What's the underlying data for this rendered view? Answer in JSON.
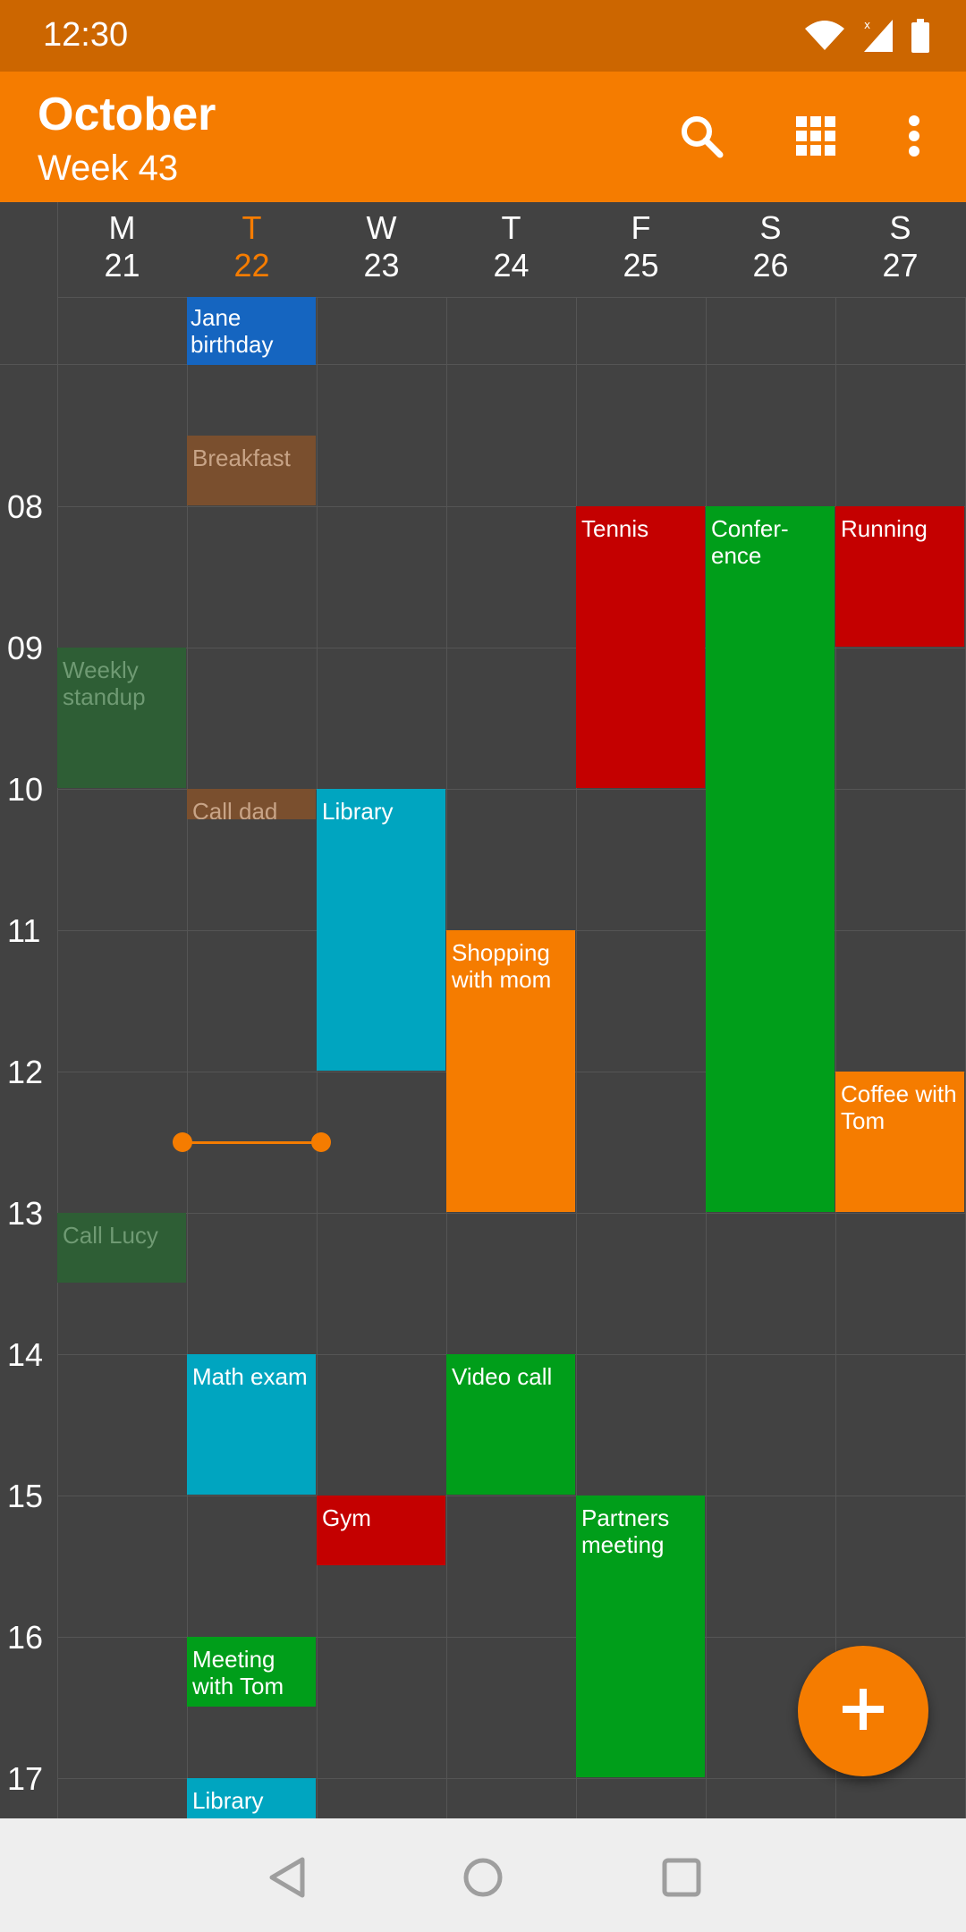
{
  "status_bar": {
    "time": "12:30",
    "icons": [
      "wifi-icon",
      "signal-icon",
      "battery-icon"
    ]
  },
  "app_bar": {
    "title": "October",
    "subtitle": "Week 43",
    "actions": [
      "search-icon",
      "grid-icon",
      "more-vert-icon"
    ]
  },
  "days": [
    {
      "letter": "M",
      "number": "21"
    },
    {
      "letter": "T",
      "number": "22",
      "today": true
    },
    {
      "letter": "W",
      "number": "23"
    },
    {
      "letter": "T",
      "number": "24"
    },
    {
      "letter": "F",
      "number": "25"
    },
    {
      "letter": "S",
      "number": "26"
    },
    {
      "letter": "S",
      "number": "27"
    }
  ],
  "hours": [
    "08",
    "09",
    "10",
    "11",
    "12",
    "13",
    "14",
    "15",
    "16",
    "17"
  ],
  "all_day_events": [
    {
      "title": "Jane birthday",
      "day": 1,
      "color": "#1565C0"
    }
  ],
  "events": [
    {
      "title": "Breakfast",
      "day": 1,
      "start": 7.5,
      "end": 8.0,
      "color": "#7A4F2E",
      "text_color": "#C8A487",
      "faded": true
    },
    {
      "title": "Weekly standup",
      "day": 0,
      "start": 9.0,
      "end": 10.0,
      "color": "#2E5E35",
      "text_color": "#6F9A73",
      "faded": true
    },
    {
      "title": "Call dad",
      "day": 1,
      "start": 10.0,
      "end": 10.22,
      "color": "#7A4F2E",
      "text_color": "#C8A487",
      "faded": true
    },
    {
      "title": "Call Lucy",
      "day": 0,
      "start": 13.0,
      "end": 13.5,
      "color": "#2E5E35",
      "text_color": "#6F9A73",
      "faded": true
    },
    {
      "title": "Tennis",
      "day": 4,
      "start": 8.0,
      "end": 10.0,
      "color": "#C40000"
    },
    {
      "title": "Confer-ence",
      "day": 5,
      "start": 8.0,
      "end": 13.0,
      "color": "#009E1A"
    },
    {
      "title": "Running",
      "day": 6,
      "start": 8.0,
      "end": 9.0,
      "color": "#C40000"
    },
    {
      "title": "Library",
      "day": 2,
      "start": 10.0,
      "end": 12.0,
      "color": "#00A5C0"
    },
    {
      "title": "Shopping with mom",
      "day": 3,
      "start": 11.0,
      "end": 13.0,
      "color": "#F57C00"
    },
    {
      "title": "Coffee with Tom",
      "day": 6,
      "start": 12.0,
      "end": 13.0,
      "color": "#F57C00"
    },
    {
      "title": "Math exam",
      "day": 1,
      "start": 14.0,
      "end": 15.0,
      "color": "#00A5C0"
    },
    {
      "title": "Video call",
      "day": 3,
      "start": 14.0,
      "end": 15.0,
      "color": "#009E1A"
    },
    {
      "title": "Gym",
      "day": 2,
      "start": 15.0,
      "end": 15.5,
      "color": "#C40000"
    },
    {
      "title": "Partners meeting",
      "day": 4,
      "start": 15.0,
      "end": 17.0,
      "color": "#009E1A"
    },
    {
      "title": "Meeting with Tom",
      "day": 1,
      "start": 16.0,
      "end": 16.5,
      "color": "#009E1A"
    },
    {
      "title": "Library",
      "day": 1,
      "start": 17.0,
      "end": 17.35,
      "color": "#00A5C0"
    }
  ],
  "current_time": {
    "day": 1,
    "hour": 12.5
  },
  "fab_icon": "add-icon",
  "nav_bar": [
    "back-icon",
    "home-icon",
    "recents-icon"
  ]
}
